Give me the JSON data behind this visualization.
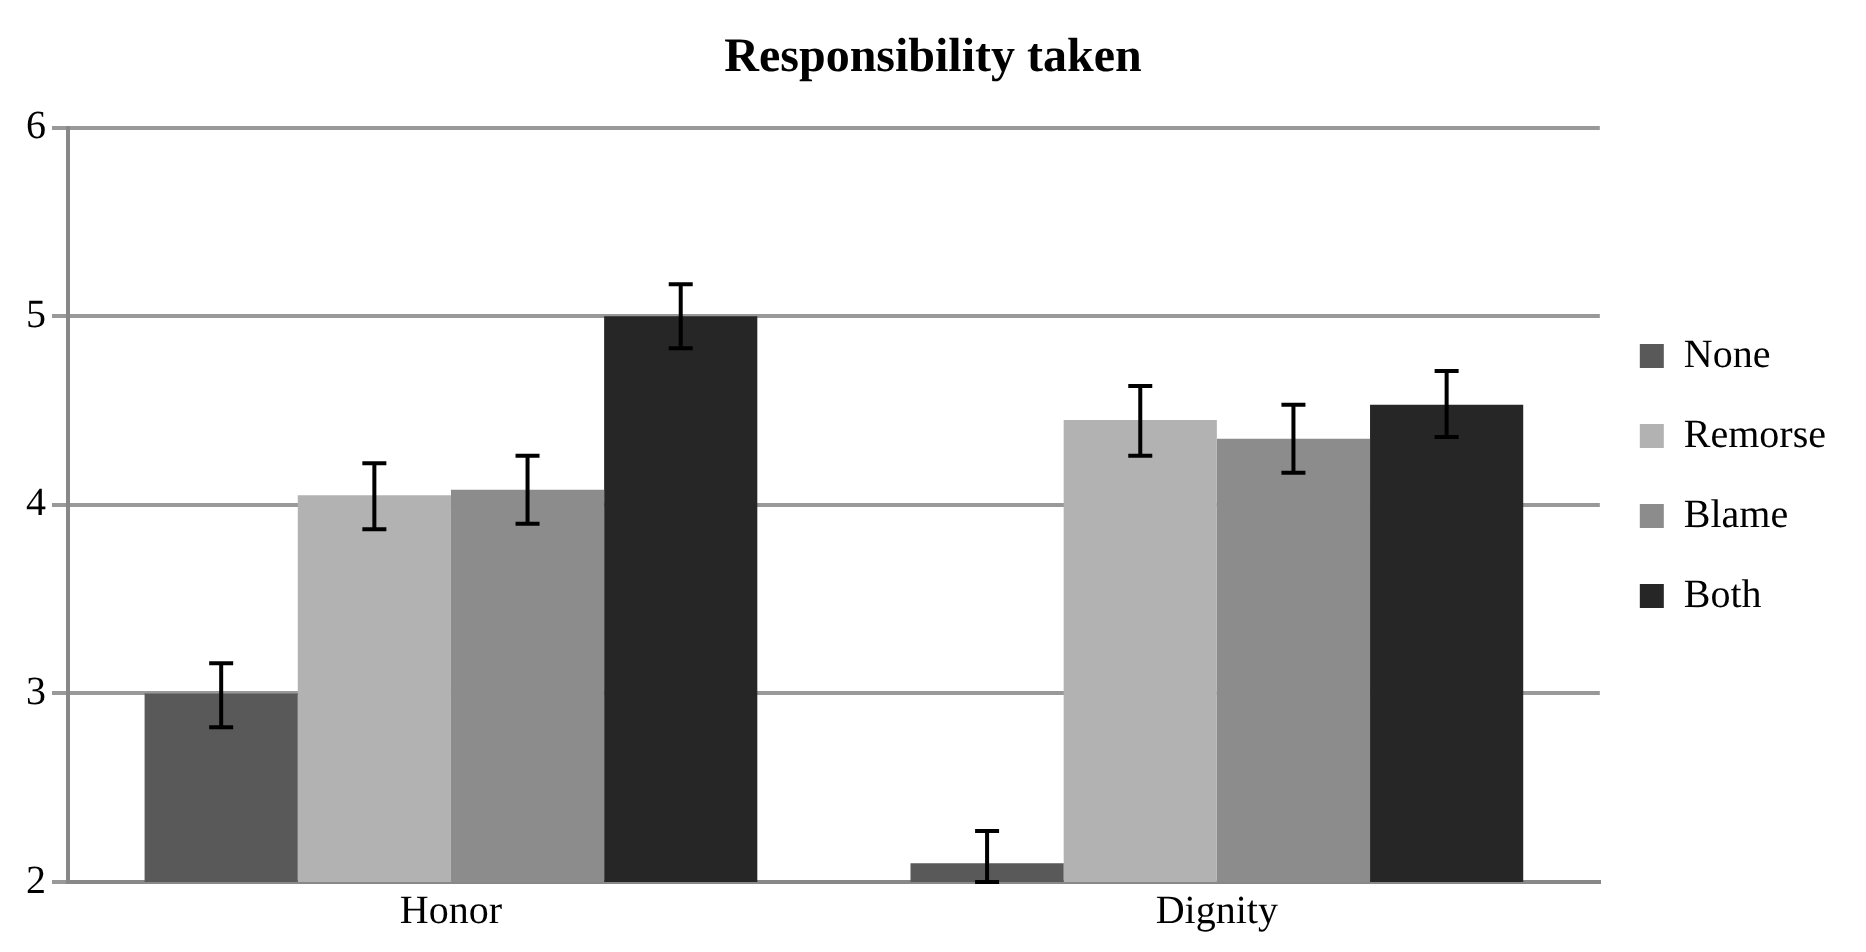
{
  "chart_data": {
    "type": "bar",
    "title": "Responsibility taken",
    "categories": [
      "Honor",
      "Dignity"
    ],
    "series": [
      {
        "name": "None",
        "color": "#595959",
        "values": [
          3.0,
          2.1
        ],
        "errors": [
          [
            2.82,
            3.16
          ],
          [
            2.0,
            2.27
          ]
        ]
      },
      {
        "name": "Remorse",
        "color": "#b2b2b2",
        "values": [
          4.05,
          4.45
        ],
        "errors": [
          [
            3.87,
            4.22
          ],
          [
            4.26,
            4.63
          ]
        ]
      },
      {
        "name": "Blame",
        "color": "#8c8c8c",
        "values": [
          4.08,
          4.35
        ],
        "errors": [
          [
            3.9,
            4.26
          ],
          [
            4.17,
            4.53
          ]
        ]
      },
      {
        "name": "Both",
        "color": "#262626",
        "values": [
          5.0,
          4.53
        ],
        "errors": [
          [
            4.83,
            5.17
          ],
          [
            4.36,
            4.71
          ]
        ]
      }
    ],
    "ylim": [
      2,
      6
    ],
    "yticks": [
      2,
      3,
      4,
      5,
      6
    ],
    "grid": "y",
    "legend": "right"
  }
}
